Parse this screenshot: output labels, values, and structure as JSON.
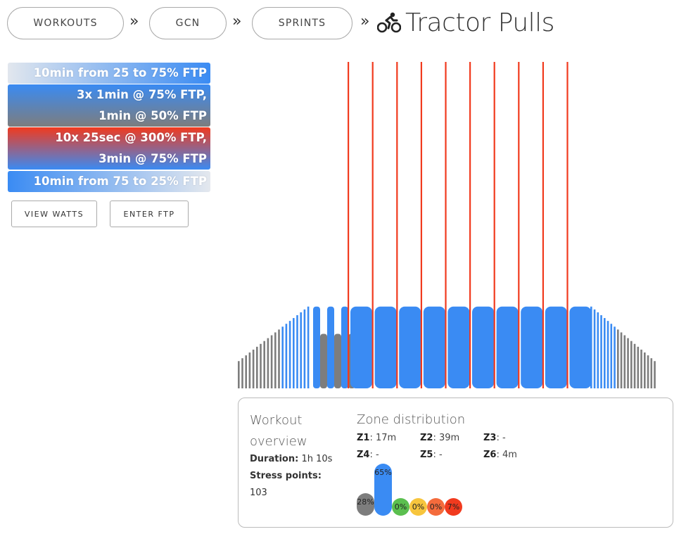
{
  "breadcrumbs": [
    {
      "label": "WORKOUTS"
    },
    {
      "label": "GCN"
    },
    {
      "label": "SPRINTS"
    }
  ],
  "breadcrumb_separator": "»",
  "title": "Tractor Pulls",
  "title_icon": "cyclist-icon",
  "segments": [
    {
      "lines": [
        "10min from 25 to 75% FTP"
      ]
    },
    {
      "lines": [
        "3x 1min @ 75% FTP,",
        "1min @ 50% FTP"
      ]
    },
    {
      "lines": [
        "10x 25sec @ 300% FTP,",
        "3min @ 75% FTP"
      ]
    },
    {
      "lines": [
        "10min from 75 to 25% FTP"
      ]
    }
  ],
  "buttons": {
    "view_watts": "VIEW WATTS",
    "enter_ftp": "ENTER FTP"
  },
  "overview": {
    "heading": "Workout overview",
    "duration_label": "Duration:",
    "duration_value": "1h 10s",
    "stress_label": "Stress points:",
    "stress_value": "103"
  },
  "zone_distribution": {
    "heading": "Zone distribution",
    "zones": [
      {
        "label": "Z1",
        "value": "17m"
      },
      {
        "label": "Z2",
        "value": "39m"
      },
      {
        "label": "Z3",
        "value": "-"
      },
      {
        "label": "Z4",
        "value": "-"
      },
      {
        "label": "Z5",
        "value": "-"
      },
      {
        "label": "Z6",
        "value": "4m"
      }
    ],
    "bars": [
      {
        "label": "28%",
        "percent": 28,
        "color": "#7d7d7d"
      },
      {
        "label": "65%",
        "percent": 65,
        "color": "#3a8bf3"
      },
      {
        "label": "0%",
        "percent": 0,
        "color": "#5bbf4f"
      },
      {
        "label": "0%",
        "percent": 0,
        "color": "#f7c53d"
      },
      {
        "label": "0%",
        "percent": 0,
        "color": "#f46b3c"
      },
      {
        "label": "7%",
        "percent": 7,
        "color": "#f13a1e"
      }
    ]
  },
  "colors": {
    "z1": "#7d7d7d",
    "z2": "#3a8bf3",
    "z6": "#f13a1e"
  },
  "chart_data": {
    "type": "bar",
    "title": "",
    "xlabel": "",
    "ylabel": "",
    "unit": "% FTP",
    "intervals": [
      {
        "kind": "ramp",
        "from": 25,
        "to": 75,
        "count": 20
      },
      {
        "kind": "repeat",
        "times": 3,
        "on": 75,
        "off": 50
      },
      {
        "kind": "repeat",
        "times": 10,
        "sprint": 300,
        "recovery": 75
      },
      {
        "kind": "ramp",
        "from": 75,
        "to": 25,
        "count": 20
      }
    ]
  }
}
